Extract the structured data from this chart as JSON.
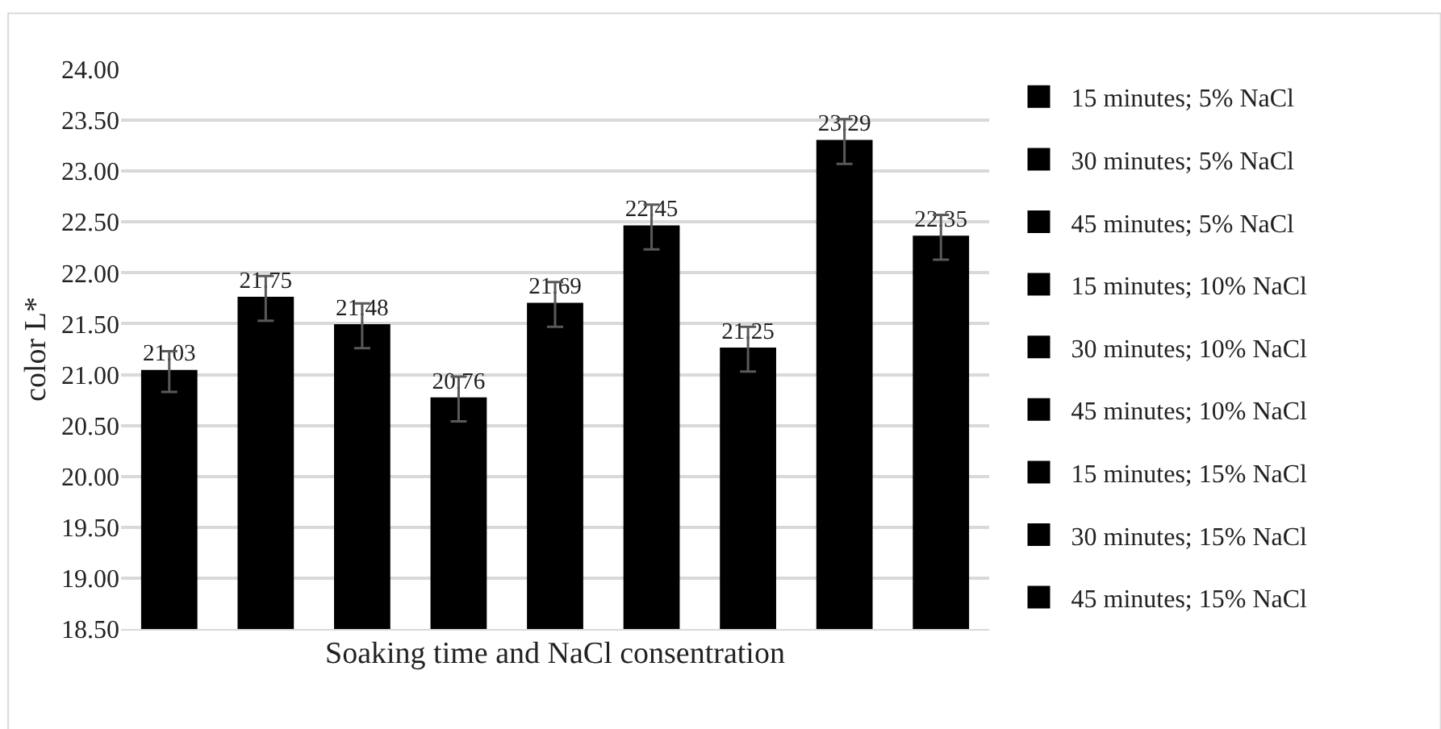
{
  "chart_data": {
    "type": "bar",
    "xlabel": "Soaking time and NaCl consentration",
    "ylabel": "color L*",
    "categories": [
      null
    ],
    "series": [
      {
        "name": "15 minutes; 5% NaCl",
        "color": "#000000",
        "values": [
          21.03
        ],
        "errors": [
          0.2
        ]
      },
      {
        "name": "30 minutes; 5% NaCl",
        "color": "#000000",
        "values": [
          21.75
        ],
        "errors": [
          0.22
        ]
      },
      {
        "name": "45 minutes; 5% NaCl",
        "color": "#000000",
        "values": [
          21.48
        ],
        "errors": [
          0.22
        ]
      },
      {
        "name": "15 minutes; 10% NaCl",
        "color": "#000000",
        "values": [
          20.76
        ],
        "errors": [
          0.22
        ]
      },
      {
        "name": "30 minutes; 10% NaCl",
        "color": "#000000",
        "values": [
          21.69
        ],
        "errors": [
          0.22
        ]
      },
      {
        "name": "45 minutes; 10% NaCl",
        "color": "#000000",
        "values": [
          22.45
        ],
        "errors": [
          0.22
        ]
      },
      {
        "name": "15 minutes; 15% NaCl",
        "color": "#000000",
        "values": [
          21.25
        ],
        "errors": [
          0.22
        ]
      },
      {
        "name": "30 minutes; 15% NaCl",
        "color": "#000000",
        "values": [
          23.29
        ],
        "errors": [
          0.22
        ]
      },
      {
        "name": "45 minutes; 15% NaCl",
        "color": "#000000",
        "values": [
          22.35
        ],
        "errors": [
          0.22
        ]
      }
    ],
    "ylim": [
      18.5,
      24.0
    ],
    "yticks": [
      {
        "value": 18.5,
        "label": "18.50"
      },
      {
        "value": 19.0,
        "label": "19.00"
      },
      {
        "value": 19.5,
        "label": "19.50"
      },
      {
        "value": 20.0,
        "label": "20.00"
      },
      {
        "value": 20.5,
        "label": "20.50"
      },
      {
        "value": 21.0,
        "label": "21.00"
      },
      {
        "value": 21.5,
        "label": "21.50"
      },
      {
        "value": 22.0,
        "label": "22.00"
      },
      {
        "value": 22.5,
        "label": "22.50"
      },
      {
        "value": 23.0,
        "label": "23.00"
      },
      {
        "value": 23.5,
        "label": "23.50"
      },
      {
        "value": 24.0,
        "label": "24.00"
      }
    ],
    "data_labels": true,
    "grid": "y",
    "legend": "right"
  }
}
